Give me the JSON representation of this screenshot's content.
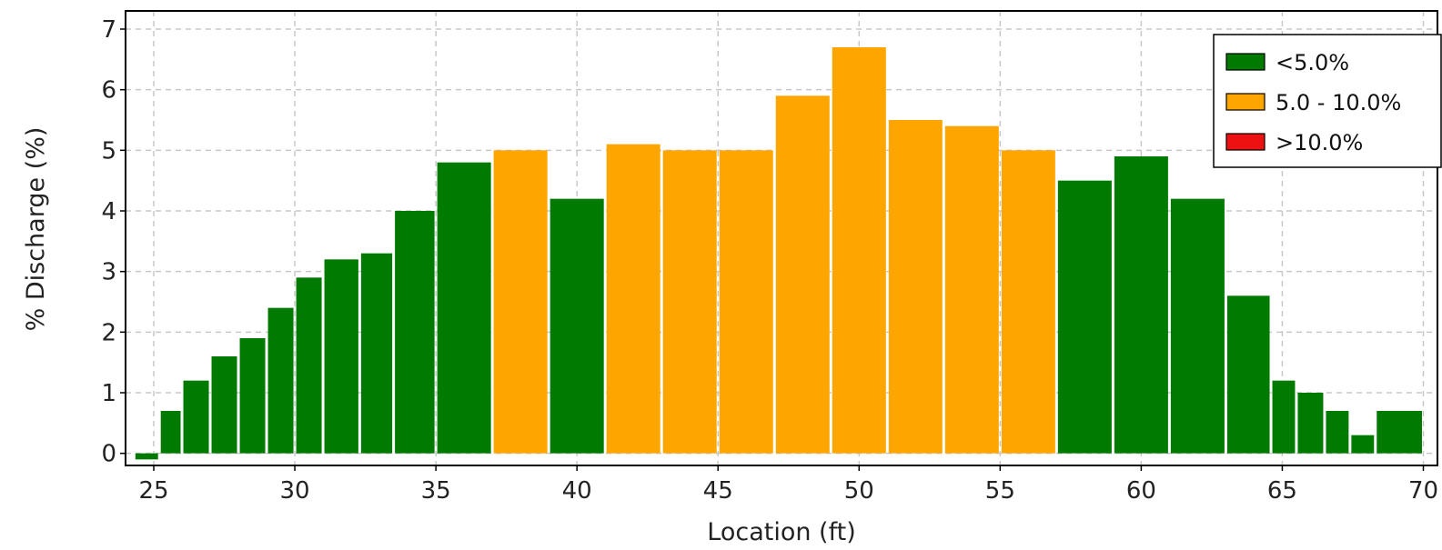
{
  "chart_data": {
    "type": "bar",
    "title": "",
    "xlabel": "Location (ft)",
    "ylabel": "% Discharge (%)",
    "xlim": [
      24,
      70.5
    ],
    "ylim": [
      -0.2,
      7.3
    ],
    "xticks": [
      25,
      30,
      35,
      40,
      45,
      50,
      55,
      60,
      65,
      70
    ],
    "yticks": [
      0,
      1,
      2,
      3,
      4,
      5,
      6,
      7
    ],
    "grid": true,
    "legend_position": "top-right",
    "legend": [
      {
        "label": "<5.0%",
        "color": "#007a00"
      },
      {
        "label": "5.0 - 10.0%",
        "color": "#ffa500"
      },
      {
        "label": ">10.0%",
        "color": "#ee1111"
      }
    ],
    "bars": [
      {
        "x0": 24.3,
        "x1": 25.2,
        "value": -0.1,
        "class": 0
      },
      {
        "x0": 25.2,
        "x1": 26.0,
        "value": 0.7,
        "class": 0
      },
      {
        "x0": 26.0,
        "x1": 27.0,
        "value": 1.2,
        "class": 0
      },
      {
        "x0": 27.0,
        "x1": 28.0,
        "value": 1.6,
        "class": 0
      },
      {
        "x0": 28.0,
        "x1": 29.0,
        "value": 1.9,
        "class": 0
      },
      {
        "x0": 29.0,
        "x1": 30.0,
        "value": 2.4,
        "class": 0
      },
      {
        "x0": 30.0,
        "x1": 31.0,
        "value": 2.9,
        "class": 0
      },
      {
        "x0": 31.0,
        "x1": 32.3,
        "value": 3.2,
        "class": 0
      },
      {
        "x0": 32.3,
        "x1": 33.5,
        "value": 3.3,
        "class": 0
      },
      {
        "x0": 33.5,
        "x1": 35.0,
        "value": 4.0,
        "class": 0
      },
      {
        "x0": 35.0,
        "x1": 37.0,
        "value": 4.8,
        "class": 0
      },
      {
        "x0": 37.0,
        "x1": 39.0,
        "value": 5.0,
        "class": 1
      },
      {
        "x0": 39.0,
        "x1": 41.0,
        "value": 4.2,
        "class": 0
      },
      {
        "x0": 41.0,
        "x1": 43.0,
        "value": 5.1,
        "class": 1
      },
      {
        "x0": 43.0,
        "x1": 45.0,
        "value": 5.0,
        "class": 1
      },
      {
        "x0": 45.0,
        "x1": 47.0,
        "value": 5.0,
        "class": 1
      },
      {
        "x0": 47.0,
        "x1": 49.0,
        "value": 5.9,
        "class": 1
      },
      {
        "x0": 49.0,
        "x1": 51.0,
        "value": 6.7,
        "class": 1
      },
      {
        "x0": 51.0,
        "x1": 53.0,
        "value": 5.5,
        "class": 1
      },
      {
        "x0": 53.0,
        "x1": 55.0,
        "value": 5.4,
        "class": 1
      },
      {
        "x0": 55.0,
        "x1": 57.0,
        "value": 5.0,
        "class": 1
      },
      {
        "x0": 57.0,
        "x1": 59.0,
        "value": 4.5,
        "class": 0
      },
      {
        "x0": 59.0,
        "x1": 61.0,
        "value": 4.9,
        "class": 0
      },
      {
        "x0": 61.0,
        "x1": 63.0,
        "value": 4.2,
        "class": 0
      },
      {
        "x0": 63.0,
        "x1": 64.6,
        "value": 2.6,
        "class": 0
      },
      {
        "x0": 64.6,
        "x1": 65.5,
        "value": 1.2,
        "class": 0
      },
      {
        "x0": 65.5,
        "x1": 66.5,
        "value": 1.0,
        "class": 0
      },
      {
        "x0": 66.5,
        "x1": 67.4,
        "value": 0.7,
        "class": 0
      },
      {
        "x0": 67.4,
        "x1": 68.3,
        "value": 0.3,
        "class": 0
      },
      {
        "x0": 68.3,
        "x1": 70.0,
        "value": 0.7,
        "class": 0
      }
    ]
  }
}
